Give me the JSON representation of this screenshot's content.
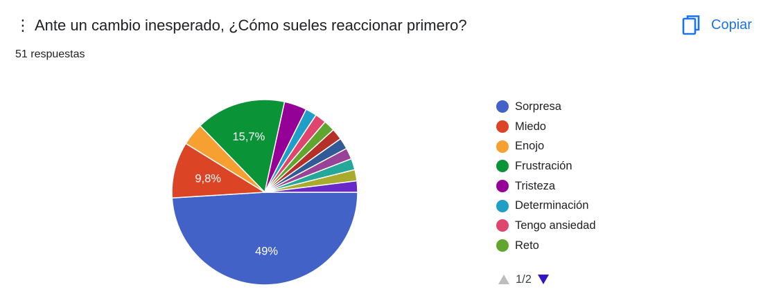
{
  "header": {
    "drag_handle": "⋮",
    "title": "Ante un cambio inesperado, ¿Cómo sueles reaccionar primero?",
    "response_count": "51 respuestas",
    "copy_label": "Copiar"
  },
  "colors": {
    "accent": "#1a73e8",
    "pager_active": "#3318c7",
    "pager_disabled": "#bdbdbd"
  },
  "pager": {
    "text": "1/2"
  },
  "chart_data": {
    "type": "pie",
    "total": 51,
    "start": "right-horizontal",
    "direction": "clockwise",
    "slices": [
      {
        "label": "Sorpresa",
        "count": 25,
        "percent_label": "49%",
        "color": "#4262c8"
      },
      {
        "label": "Miedo",
        "count": 5,
        "percent_label": "9,8%",
        "color": "#db4425"
      },
      {
        "label": "Enojo",
        "count": 2,
        "percent_label": "",
        "color": "#f7a032"
      },
      {
        "label": "Frustración",
        "count": 8,
        "percent_label": "15,7%",
        "color": "#0b9337"
      },
      {
        "label": "Tristeza",
        "count": 2,
        "percent_label": "",
        "color": "#950097"
      },
      {
        "label": "Determinación",
        "count": 1,
        "percent_label": "",
        "color": "#1f9ec7"
      },
      {
        "label": "Tengo ansiedad",
        "count": 1,
        "percent_label": "",
        "color": "#de4670"
      },
      {
        "label": "Reto",
        "count": 1,
        "percent_label": "",
        "color": "#5fa52e"
      },
      {
        "label": "",
        "count": 1,
        "percent_label": "",
        "color": "#b6302a"
      },
      {
        "label": "",
        "count": 1,
        "percent_label": "",
        "color": "#315b97"
      },
      {
        "label": "",
        "count": 1,
        "percent_label": "",
        "color": "#994398"
      },
      {
        "label": "",
        "count": 1,
        "percent_label": "",
        "color": "#25a799"
      },
      {
        "label": "",
        "count": 1,
        "percent_label": "",
        "color": "#a9aa2e"
      },
      {
        "label": "",
        "count": 1,
        "percent_label": "",
        "color": "#6829c7"
      }
    ],
    "legend_page_size": 8
  }
}
